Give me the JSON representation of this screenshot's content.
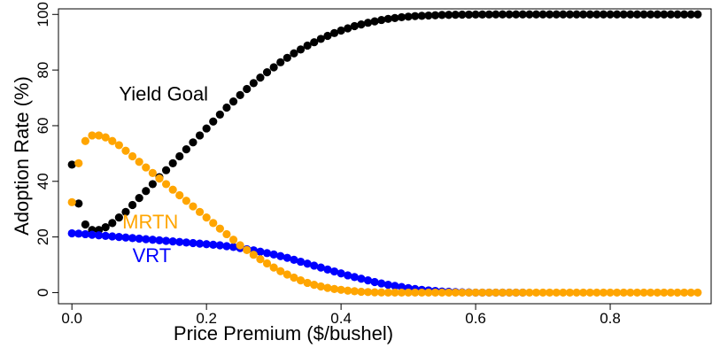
{
  "chart_data": {
    "type": "scatter",
    "title": "",
    "xlabel": "Price Premium ($/bushel)",
    "ylabel": "Adoption Rate (%)",
    "xlim": [
      -0.02,
      0.95
    ],
    "ylim": [
      -4,
      102
    ],
    "xticks": [
      0.0,
      0.2,
      0.4,
      0.6,
      0.8
    ],
    "xtick_labels": [
      "0.0",
      "0.2",
      "0.4",
      "0.6",
      "0.8"
    ],
    "yticks": [
      0,
      20,
      40,
      60,
      80,
      100
    ],
    "ytick_labels": [
      "0",
      "20",
      "40",
      "60",
      "80",
      "100"
    ],
    "grid": false,
    "legend": "none (series labeled inline)",
    "series": [
      {
        "name": "Yield Goal",
        "color": "#000000",
        "points": [
          [
            0.0,
            46.0
          ],
          [
            0.01,
            32.0
          ],
          [
            0.02,
            24.5
          ],
          [
            0.03,
            22.5
          ],
          [
            0.04,
            22.5
          ],
          [
            0.05,
            23.5
          ],
          [
            0.06,
            25.0
          ],
          [
            0.07,
            27.0
          ],
          [
            0.08,
            29.0
          ],
          [
            0.09,
            31.5
          ],
          [
            0.1,
            34.0
          ],
          [
            0.11,
            36.5
          ],
          [
            0.12,
            39.0
          ],
          [
            0.13,
            41.5
          ],
          [
            0.14,
            44.0
          ],
          [
            0.15,
            46.5
          ],
          [
            0.16,
            49.0
          ],
          [
            0.17,
            51.5
          ],
          [
            0.18,
            54.0
          ],
          [
            0.19,
            56.5
          ],
          [
            0.2,
            59.0
          ],
          [
            0.21,
            61.5
          ],
          [
            0.22,
            64.0
          ],
          [
            0.23,
            66.5
          ],
          [
            0.24,
            68.7
          ],
          [
            0.25,
            71.0
          ],
          [
            0.26,
            73.2
          ],
          [
            0.27,
            75.3
          ],
          [
            0.28,
            77.3
          ],
          [
            0.29,
            79.2
          ],
          [
            0.3,
            81.0
          ],
          [
            0.31,
            82.8
          ],
          [
            0.32,
            84.4
          ],
          [
            0.33,
            86.0
          ],
          [
            0.34,
            87.4
          ],
          [
            0.35,
            88.8
          ],
          [
            0.36,
            90.0
          ],
          [
            0.37,
            91.2
          ],
          [
            0.38,
            92.3
          ],
          [
            0.39,
            93.3
          ],
          [
            0.4,
            94.2
          ],
          [
            0.41,
            95.0
          ],
          [
            0.42,
            95.8
          ],
          [
            0.43,
            96.4
          ],
          [
            0.44,
            97.0
          ],
          [
            0.45,
            97.5
          ],
          [
            0.46,
            98.0
          ],
          [
            0.47,
            98.4
          ],
          [
            0.48,
            98.7
          ],
          [
            0.49,
            99.0
          ],
          [
            0.5,
            99.2
          ],
          [
            0.51,
            99.4
          ],
          [
            0.52,
            99.5
          ],
          [
            0.53,
            99.6
          ],
          [
            0.54,
            99.7
          ],
          [
            0.55,
            99.8
          ],
          [
            0.56,
            99.85
          ],
          [
            0.57,
            99.9
          ],
          [
            0.58,
            99.92
          ],
          [
            0.59,
            99.95
          ],
          [
            0.6,
            99.97
          ],
          [
            0.61,
            99.98
          ],
          [
            0.62,
            99.99
          ],
          [
            0.63,
            100
          ],
          [
            0.64,
            100
          ],
          [
            0.65,
            100
          ],
          [
            0.66,
            100
          ],
          [
            0.67,
            100
          ],
          [
            0.68,
            100
          ],
          [
            0.69,
            100
          ],
          [
            0.7,
            100
          ],
          [
            0.71,
            100
          ],
          [
            0.72,
            100
          ],
          [
            0.73,
            100
          ],
          [
            0.74,
            100
          ],
          [
            0.75,
            100
          ],
          [
            0.76,
            100
          ],
          [
            0.77,
            100
          ],
          [
            0.78,
            100
          ],
          [
            0.79,
            100
          ],
          [
            0.8,
            100
          ],
          [
            0.81,
            100
          ],
          [
            0.82,
            100
          ],
          [
            0.83,
            100
          ],
          [
            0.84,
            100
          ],
          [
            0.85,
            100
          ],
          [
            0.86,
            100
          ],
          [
            0.87,
            100
          ],
          [
            0.88,
            100
          ],
          [
            0.89,
            100
          ],
          [
            0.9,
            100
          ],
          [
            0.91,
            100
          ],
          [
            0.92,
            100
          ],
          [
            0.93,
            100
          ]
        ]
      },
      {
        "name": "MRTN",
        "color": "#ffa500",
        "points": [
          [
            0.0,
            32.5
          ],
          [
            0.01,
            46.5
          ],
          [
            0.02,
            54.5
          ],
          [
            0.03,
            56.5
          ],
          [
            0.04,
            56.5
          ],
          [
            0.05,
            55.8
          ],
          [
            0.06,
            54.5
          ],
          [
            0.07,
            53.0
          ],
          [
            0.08,
            51.0
          ],
          [
            0.09,
            49.0
          ],
          [
            0.1,
            47.0
          ],
          [
            0.11,
            45.0
          ],
          [
            0.12,
            43.0
          ],
          [
            0.13,
            41.0
          ],
          [
            0.14,
            39.0
          ],
          [
            0.15,
            37.0
          ],
          [
            0.16,
            35.0
          ],
          [
            0.17,
            33.0
          ],
          [
            0.18,
            31.0
          ],
          [
            0.19,
            29.0
          ],
          [
            0.2,
            27.0
          ],
          [
            0.21,
            25.0
          ],
          [
            0.22,
            23.0
          ],
          [
            0.23,
            21.0
          ],
          [
            0.24,
            19.0
          ],
          [
            0.25,
            17.0
          ],
          [
            0.26,
            15.3
          ],
          [
            0.27,
            13.6
          ],
          [
            0.28,
            12.0
          ],
          [
            0.29,
            10.5
          ],
          [
            0.3,
            9.0
          ],
          [
            0.31,
            7.7
          ],
          [
            0.32,
            6.5
          ],
          [
            0.33,
            5.4
          ],
          [
            0.34,
            4.4
          ],
          [
            0.35,
            3.5
          ],
          [
            0.36,
            2.8
          ],
          [
            0.37,
            2.2
          ],
          [
            0.38,
            1.7
          ],
          [
            0.39,
            1.3
          ],
          [
            0.4,
            1.0
          ],
          [
            0.41,
            0.7
          ],
          [
            0.42,
            0.5
          ],
          [
            0.43,
            0.3
          ],
          [
            0.44,
            0.2
          ],
          [
            0.45,
            0.1
          ],
          [
            0.46,
            0.05
          ],
          [
            0.47,
            0
          ],
          [
            0.48,
            0
          ],
          [
            0.49,
            0
          ],
          [
            0.5,
            0
          ],
          [
            0.51,
            0
          ],
          [
            0.52,
            0
          ],
          [
            0.53,
            0
          ],
          [
            0.54,
            0
          ],
          [
            0.55,
            0
          ],
          [
            0.56,
            0
          ],
          [
            0.57,
            0
          ],
          [
            0.58,
            0
          ],
          [
            0.59,
            0
          ],
          [
            0.6,
            0
          ],
          [
            0.61,
            0
          ],
          [
            0.62,
            0
          ],
          [
            0.63,
            0
          ],
          [
            0.64,
            0
          ],
          [
            0.65,
            0
          ],
          [
            0.66,
            0
          ],
          [
            0.67,
            0
          ],
          [
            0.68,
            0
          ],
          [
            0.69,
            0
          ],
          [
            0.7,
            0
          ],
          [
            0.71,
            0
          ],
          [
            0.72,
            0
          ],
          [
            0.73,
            0
          ],
          [
            0.74,
            0
          ],
          [
            0.75,
            0
          ],
          [
            0.76,
            0
          ],
          [
            0.77,
            0
          ],
          [
            0.78,
            0
          ],
          [
            0.79,
            0
          ],
          [
            0.8,
            0
          ],
          [
            0.81,
            0
          ],
          [
            0.82,
            0
          ],
          [
            0.83,
            0
          ],
          [
            0.84,
            0
          ],
          [
            0.85,
            0
          ],
          [
            0.86,
            0
          ],
          [
            0.87,
            0
          ],
          [
            0.88,
            0
          ],
          [
            0.89,
            0
          ],
          [
            0.9,
            0
          ],
          [
            0.91,
            0
          ],
          [
            0.92,
            0
          ],
          [
            0.93,
            0
          ]
        ]
      },
      {
        "name": "VRT",
        "color": "#0000ff",
        "points": [
          [
            0.0,
            21.3
          ],
          [
            0.01,
            21.2
          ],
          [
            0.02,
            21.0
          ],
          [
            0.03,
            20.8
          ],
          [
            0.04,
            20.6
          ],
          [
            0.05,
            20.4
          ],
          [
            0.06,
            20.2
          ],
          [
            0.07,
            20.0
          ],
          [
            0.08,
            19.8
          ],
          [
            0.09,
            19.6
          ],
          [
            0.1,
            19.4
          ],
          [
            0.11,
            19.2
          ],
          [
            0.12,
            19.0
          ],
          [
            0.13,
            18.8
          ],
          [
            0.14,
            18.6
          ],
          [
            0.15,
            18.4
          ],
          [
            0.16,
            18.2
          ],
          [
            0.17,
            18.0
          ],
          [
            0.18,
            17.8
          ],
          [
            0.19,
            17.6
          ],
          [
            0.2,
            17.4
          ],
          [
            0.21,
            17.2
          ],
          [
            0.22,
            17.0
          ],
          [
            0.23,
            16.7
          ],
          [
            0.24,
            16.4
          ],
          [
            0.25,
            16.0
          ],
          [
            0.26,
            15.6
          ],
          [
            0.27,
            15.2
          ],
          [
            0.28,
            14.7
          ],
          [
            0.29,
            14.2
          ],
          [
            0.3,
            13.7
          ],
          [
            0.31,
            13.1
          ],
          [
            0.32,
            12.5
          ],
          [
            0.33,
            11.8
          ],
          [
            0.34,
            11.1
          ],
          [
            0.35,
            10.4
          ],
          [
            0.36,
            9.7
          ],
          [
            0.37,
            9.0
          ],
          [
            0.38,
            8.3
          ],
          [
            0.39,
            7.6
          ],
          [
            0.4,
            6.9
          ],
          [
            0.41,
            6.2
          ],
          [
            0.42,
            5.6
          ],
          [
            0.43,
            5.0
          ],
          [
            0.44,
            4.4
          ],
          [
            0.45,
            3.8
          ],
          [
            0.46,
            3.3
          ],
          [
            0.47,
            2.8
          ],
          [
            0.48,
            2.4
          ],
          [
            0.49,
            2.0
          ],
          [
            0.5,
            1.6
          ],
          [
            0.51,
            1.3
          ],
          [
            0.52,
            1.0
          ],
          [
            0.53,
            0.8
          ],
          [
            0.54,
            0.6
          ],
          [
            0.55,
            0.4
          ],
          [
            0.56,
            0.3
          ],
          [
            0.57,
            0.2
          ],
          [
            0.58,
            0.1
          ],
          [
            0.59,
            0.05
          ],
          [
            0.6,
            0
          ],
          [
            0.61,
            0
          ],
          [
            0.62,
            0
          ],
          [
            0.63,
            0
          ],
          [
            0.64,
            0
          ],
          [
            0.65,
            0
          ],
          [
            0.66,
            0
          ],
          [
            0.67,
            0
          ]
        ]
      }
    ],
    "annotations": [
      {
        "text": "Yield Goal",
        "series": "Yield Goal",
        "x": 0.07,
        "y": 69,
        "color": "#000000"
      },
      {
        "text": "MRTN",
        "series": "MRTN",
        "x": 0.075,
        "y": 23,
        "color": "#ffa500"
      },
      {
        "text": "VRT",
        "series": "VRT",
        "x": 0.09,
        "y": 11,
        "color": "#0000ff"
      }
    ]
  }
}
